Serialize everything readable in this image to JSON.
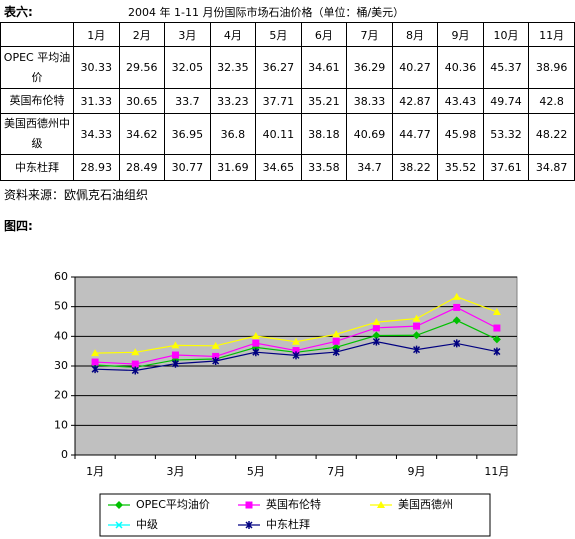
{
  "label": "表六:",
  "title": "2004 年 1-11 月份国际市场石油价格（单位：桶/美元）",
  "table": {
    "header": [
      "1月",
      "2月",
      "3月",
      "4月",
      "5月",
      "6月",
      "7月",
      "8月",
      "9月",
      "10月",
      "11月"
    ],
    "rows": [
      {
        "name": "OPEC 平均油价",
        "values": [
          30.33,
          29.56,
          32.05,
          32.35,
          36.27,
          34.61,
          36.29,
          40.27,
          40.36,
          45.37,
          38.96
        ]
      },
      {
        "name": "英国布伦特",
        "values": [
          31.33,
          30.65,
          33.7,
          33.23,
          37.71,
          35.21,
          38.33,
          42.87,
          43.43,
          49.74,
          42.8
        ]
      },
      {
        "name": "美国西德州中级",
        "values": [
          34.33,
          34.62,
          36.95,
          36.8,
          40.11,
          38.18,
          40.69,
          44.77,
          45.98,
          53.32,
          48.22
        ]
      },
      {
        "name": "中东杜拜",
        "values": [
          28.93,
          28.49,
          30.77,
          31.69,
          34.65,
          33.58,
          34.7,
          38.22,
          35.52,
          37.61,
          34.87
        ]
      }
    ]
  },
  "source": "资料来源：欧佩克石油组织",
  "figure_label": "图四:",
  "chart_data": {
    "type": "line",
    "categories": [
      "1月",
      null,
      "3月",
      null,
      "5月",
      null,
      "7月",
      null,
      "9月",
      null,
      "11月"
    ],
    "ylim": [
      0,
      60
    ],
    "yticks": [
      0,
      10,
      20,
      30,
      40,
      50,
      60
    ],
    "grid": true,
    "series": [
      {
        "name": "OPEC平均油价",
        "color": "#00c000",
        "marker": "diamond",
        "values": [
          30.33,
          29.56,
          32.05,
          32.35,
          36.27,
          34.61,
          36.29,
          40.27,
          40.36,
          45.37,
          38.96
        ]
      },
      {
        "name": "英国布伦特",
        "color": "#ff00ff",
        "marker": "square",
        "values": [
          31.33,
          30.65,
          33.7,
          33.23,
          37.71,
          35.21,
          38.33,
          42.87,
          43.43,
          49.74,
          42.8
        ]
      },
      {
        "name": "美国西德州",
        "color": "#ffff00",
        "marker": "triangle",
        "values": [
          34.33,
          34.62,
          36.95,
          36.8,
          40.11,
          38.18,
          40.69,
          44.77,
          45.98,
          53.32,
          48.22
        ]
      },
      {
        "name": "中级",
        "color": "#00ffff",
        "marker": "x",
        "values": [
          null,
          null,
          null,
          null,
          null,
          null,
          null,
          null,
          null,
          null,
          null
        ]
      },
      {
        "name": "中东杜拜",
        "color": "#000080",
        "marker": "star",
        "values": [
          28.93,
          28.49,
          30.77,
          31.69,
          34.65,
          33.58,
          34.7,
          38.22,
          35.52,
          37.61,
          34.87
        ]
      }
    ]
  }
}
